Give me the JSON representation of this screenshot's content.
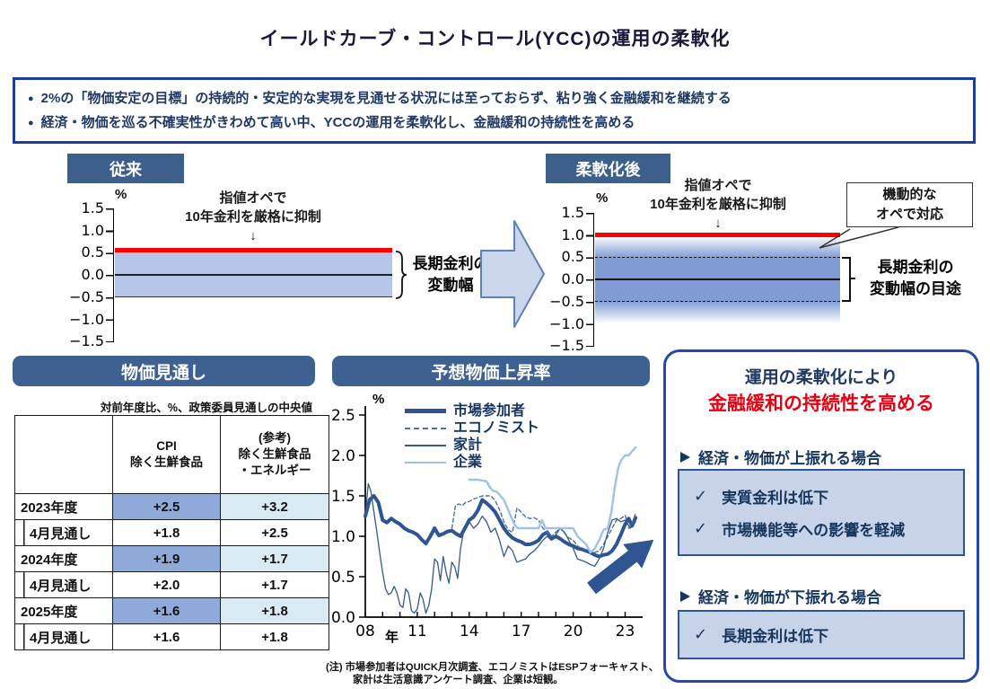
{
  "page_title": "イールドカーブ・コントロール(YCC)の運用の柔軟化",
  "summary": {
    "bullet_mark": "●",
    "bullet1": "2%の「物価安定の目標」の持続的・安定的な実現を見通せる状況には至っておらず、粘り強く金融緩和を継続する",
    "bullet2": "経済・物価を巡る不確実性がきわめて高い中、YCCの運用を柔軟化し、金融緩和の持続性を高める"
  },
  "before_panel": {
    "badge": "従来",
    "unit": "%",
    "yticks": [
      "1.5",
      "1.0",
      "0.5",
      "0.0",
      "−0.5",
      "−1.0",
      "−1.5"
    ],
    "annotation": "指値オペで\n10年金利を厳格に抑制",
    "down_arrow": "↓",
    "red_line_level": 0.5,
    "band_range": [
      -0.5,
      0.5
    ],
    "bracket_label": "長期金利の\n変動幅"
  },
  "after_panel": {
    "badge": "柔軟化後",
    "unit": "%",
    "yticks": [
      "1.5",
      "1.0",
      "0.5",
      "0.0",
      "−0.5",
      "−1.0",
      "−1.5"
    ],
    "annotation": "指値オペで\n10年金利を厳格に抑制",
    "down_arrow": "↓",
    "red_line_level": 1.0,
    "core_band_range": [
      -0.5,
      0.5
    ],
    "fade_band_range": [
      -1.0,
      1.0
    ],
    "callout": "機動的な\nオペで対応",
    "bracket_label": "長期金利の\n変動幅の目途"
  },
  "price_outlook": {
    "header": "物価見通し",
    "note": "対前年度比、%、政策委員見通しの中央値",
    "col_cpi": "CPI\n除く生鮮食品",
    "col_ref": "(参考)\n除く生鮮食品\n・エネルギー",
    "rows": [
      {
        "label": "2023年度",
        "cpi": "+2.5",
        "ref": "+3.2"
      },
      {
        "label": "4月見通し",
        "cpi": "+1.8",
        "ref": "+2.5"
      },
      {
        "label": "2024年度",
        "cpi": "+1.9",
        "ref": "+1.7"
      },
      {
        "label": "4月見通し",
        "cpi": "+2.0",
        "ref": "+1.7"
      },
      {
        "label": "2025年度",
        "cpi": "+1.6",
        "ref": "+1.8"
      },
      {
        "label": "4月見通し",
        "cpi": "+1.6",
        "ref": "+1.8"
      }
    ]
  },
  "expected_inflation": {
    "header": "予想物価上昇率",
    "note_line1": "(注) 市場参加者はQUICK月次調査、エコノミストはESPフォーキャスト、",
    "note_line2": "家計は生活意識アンケート調査、企業は短観。"
  },
  "chart_data": {
    "type": "line",
    "title": "予想物価上昇率",
    "unit": "%",
    "xlabel": "年",
    "ylim": [
      0,
      2.5
    ],
    "yticks": [
      "0.0",
      "0.5",
      "1.0",
      "1.5",
      "2.0",
      "2.5"
    ],
    "xrange": [
      2008,
      2023.7
    ],
    "xtick_years": [
      2008,
      2009,
      2010,
      2011,
      2012,
      2013,
      2014,
      2015,
      2016,
      2017,
      2018,
      2019,
      2020,
      2021,
      2022,
      2023
    ],
    "xtick_labels": [
      {
        "year": 2008,
        "label": "08"
      },
      {
        "year": 2011,
        "label": "11"
      },
      {
        "year": 2014,
        "label": "14"
      },
      {
        "year": 2017,
        "label": "17"
      },
      {
        "year": 2020,
        "label": "20"
      },
      {
        "year": 2023,
        "label": "23"
      }
    ],
    "legend_position": "top-left-inside",
    "series": [
      {
        "name": "市場参加者",
        "color": "#2e5492",
        "width": 4,
        "dash": false,
        "points": [
          [
            2008,
            1.25
          ],
          [
            2008.25,
            1.45
          ],
          [
            2008.5,
            1.5
          ],
          [
            2008.75,
            1.42
          ],
          [
            2009,
            1.2
          ],
          [
            2009.25,
            1.17
          ],
          [
            2009.5,
            1.22
          ],
          [
            2009.75,
            1.18
          ],
          [
            2010,
            1.15
          ],
          [
            2010.25,
            1.1
          ],
          [
            2010.5,
            1.07
          ],
          [
            2010.75,
            1.05
          ],
          [
            2011,
            1.02
          ],
          [
            2011.25,
            0.96
          ],
          [
            2011.5,
            0.91
          ],
          [
            2011.75,
            1.0
          ],
          [
            2012,
            1.1
          ],
          [
            2012.25,
            1.01
          ],
          [
            2012.5,
            1.03
          ],
          [
            2012.75,
            1.06
          ],
          [
            2013,
            1.07
          ],
          [
            2013.25,
            1.03
          ],
          [
            2013.5,
            1.0
          ],
          [
            2013.75,
            1.1
          ],
          [
            2014,
            1.2
          ],
          [
            2014.25,
            1.24
          ],
          [
            2014.5,
            1.32
          ],
          [
            2014.75,
            1.45
          ],
          [
            2015,
            1.41
          ],
          [
            2015.25,
            1.36
          ],
          [
            2015.5,
            1.3
          ],
          [
            2015.75,
            1.2
          ],
          [
            2016,
            1.1
          ],
          [
            2016.25,
            1.03
          ],
          [
            2016.5,
            0.98
          ],
          [
            2016.75,
            0.95
          ],
          [
            2017,
            0.93
          ],
          [
            2017.25,
            0.9
          ],
          [
            2017.5,
            0.9
          ],
          [
            2017.75,
            0.92
          ],
          [
            2018,
            0.95
          ],
          [
            2018.25,
            1.02
          ],
          [
            2018.5,
            1.05
          ],
          [
            2018.75,
            0.97
          ],
          [
            2019,
            1.0
          ],
          [
            2019.25,
            0.97
          ],
          [
            2019.5,
            0.93
          ],
          [
            2019.75,
            0.9
          ],
          [
            2020,
            0.88
          ],
          [
            2020.25,
            0.85
          ],
          [
            2020.5,
            0.84
          ],
          [
            2020.75,
            0.82
          ],
          [
            2021,
            0.8
          ],
          [
            2021.25,
            0.77
          ],
          [
            2021.5,
            0.75
          ],
          [
            2021.75,
            0.77
          ],
          [
            2022,
            0.78
          ],
          [
            2022.25,
            0.82
          ],
          [
            2022.5,
            0.9
          ],
          [
            2022.75,
            1.02
          ],
          [
            2023,
            1.15
          ],
          [
            2023.2,
            1.22
          ],
          [
            2023.4,
            1.13
          ],
          [
            2023.6,
            1.23
          ]
        ]
      },
      {
        "name": "エコノミスト",
        "color": "#4a6fa5",
        "width": 1.4,
        "dash": true,
        "points": [
          [
            2013,
            1.1
          ],
          [
            2013.2,
            1.38
          ],
          [
            2013.4,
            1.4
          ],
          [
            2013.6,
            1.38
          ],
          [
            2013.8,
            1.42
          ],
          [
            2014,
            1.43
          ],
          [
            2014.25,
            1.46
          ],
          [
            2014.5,
            1.48
          ],
          [
            2014.75,
            1.5
          ],
          [
            2015,
            1.5
          ],
          [
            2015.25,
            1.5
          ],
          [
            2015.5,
            1.44
          ],
          [
            2015.75,
            1.33
          ],
          [
            2016,
            1.18
          ],
          [
            2016.25,
            1.08
          ],
          [
            2016.5,
            1.05
          ],
          [
            2016.75,
            1.35
          ],
          [
            2017,
            1.3
          ],
          [
            2017.25,
            1.24
          ],
          [
            2017.5,
            1.22
          ],
          [
            2017.75,
            1.23
          ],
          [
            2018,
            1.2
          ],
          [
            2018.25,
            1.1
          ],
          [
            2018.5,
            1.05
          ],
          [
            2018.75,
            1.0
          ],
          [
            2019,
            1.05
          ],
          [
            2019.25,
            1.1
          ],
          [
            2019.5,
            1.04
          ],
          [
            2019.75,
            0.98
          ],
          [
            2020,
            0.95
          ],
          [
            2020.25,
            0.88
          ],
          [
            2020.5,
            0.85
          ],
          [
            2020.75,
            0.83
          ],
          [
            2021,
            0.82
          ],
          [
            2021.25,
            0.8
          ],
          [
            2021.5,
            0.82
          ],
          [
            2021.75,
            0.9
          ],
          [
            2022,
            1.0
          ],
          [
            2022.25,
            1.1
          ],
          [
            2022.5,
            1.2
          ],
          [
            2022.75,
            1.22
          ],
          [
            2023,
            1.26
          ],
          [
            2023.2,
            1.1
          ],
          [
            2023.4,
            1.16
          ],
          [
            2023.6,
            1.28
          ]
        ]
      },
      {
        "name": "家計",
        "color": "#35598c",
        "width": 1.3,
        "dash": false,
        "points": [
          [
            2008,
            1.25
          ],
          [
            2008.17,
            1.65
          ],
          [
            2008.33,
            1.55
          ],
          [
            2008.5,
            1.3
          ],
          [
            2008.67,
            1.05
          ],
          [
            2008.83,
            0.8
          ],
          [
            2009,
            0.55
          ],
          [
            2009.17,
            0.35
          ],
          [
            2009.33,
            0.28
          ],
          [
            2009.5,
            0.3
          ],
          [
            2009.67,
            0.38
          ],
          [
            2009.83,
            0.3
          ],
          [
            2010,
            0.15
          ],
          [
            2010.17,
            0.12
          ],
          [
            2010.33,
            0.35
          ],
          [
            2010.5,
            0.3
          ],
          [
            2010.67,
            0.08
          ],
          [
            2010.83,
            0.05
          ],
          [
            2011,
            0.1
          ],
          [
            2011.17,
            0.3
          ],
          [
            2011.33,
            0.22
          ],
          [
            2011.5,
            0.05
          ],
          [
            2011.67,
            0.15
          ],
          [
            2011.83,
            0.35
          ],
          [
            2012,
            0.72
          ],
          [
            2012.17,
            0.68
          ],
          [
            2012.33,
            0.45
          ],
          [
            2012.5,
            0.75
          ],
          [
            2012.67,
            0.55
          ],
          [
            2012.83,
            0.42
          ],
          [
            2013,
            0.68
          ],
          [
            2013.17,
            0.62
          ],
          [
            2013.33,
            0.48
          ],
          [
            2013.5,
            0.85
          ],
          [
            2013.67,
            1.05
          ],
          [
            2013.83,
            1.15
          ],
          [
            2014,
            1.18
          ],
          [
            2014.25,
            1.1
          ],
          [
            2014.5,
            1.15
          ],
          [
            2014.75,
            1.25
          ],
          [
            2015,
            1.18
          ],
          [
            2015.25,
            1.05
          ],
          [
            2015.5,
            1.1
          ],
          [
            2015.75,
            0.95
          ],
          [
            2016,
            0.75
          ],
          [
            2016.25,
            0.88
          ],
          [
            2016.5,
            0.82
          ],
          [
            2016.75,
            0.68
          ],
          [
            2017,
            0.7
          ],
          [
            2017.25,
            0.72
          ],
          [
            2017.5,
            0.78
          ],
          [
            2017.75,
            0.82
          ],
          [
            2018,
            0.88
          ],
          [
            2018.25,
            0.95
          ],
          [
            2018.5,
            1.0
          ],
          [
            2018.75,
            0.95
          ],
          [
            2019,
            1.02
          ],
          [
            2019.25,
            1.1
          ],
          [
            2019.5,
            1.05
          ],
          [
            2019.75,
            0.95
          ],
          [
            2020,
            0.85
          ],
          [
            2020.25,
            0.72
          ],
          [
            2020.5,
            0.7
          ],
          [
            2020.75,
            0.68
          ],
          [
            2021,
            0.65
          ],
          [
            2021.25,
            0.63
          ],
          [
            2021.5,
            0.72
          ],
          [
            2021.75,
            0.85
          ],
          [
            2022,
            1.05
          ],
          [
            2022.25,
            1.2
          ],
          [
            2022.5,
            1.22
          ],
          [
            2022.75,
            1.18
          ],
          [
            2023,
            1.2
          ],
          [
            2023.3,
            1.1
          ],
          [
            2023.6,
            1.18
          ]
        ]
      },
      {
        "name": "企業",
        "color": "#9dc3e6",
        "width": 2.4,
        "dash": false,
        "points": [
          [
            2014,
            1.7
          ],
          [
            2014.25,
            1.7
          ],
          [
            2014.5,
            1.7
          ],
          [
            2014.75,
            1.69
          ],
          [
            2015,
            1.68
          ],
          [
            2015.2,
            1.6
          ],
          [
            2015.4,
            1.56
          ],
          [
            2015.6,
            1.55
          ],
          [
            2015.8,
            1.5
          ],
          [
            2016,
            1.45
          ],
          [
            2016.2,
            1.35
          ],
          [
            2016.4,
            1.25
          ],
          [
            2016.6,
            1.15
          ],
          [
            2016.8,
            1.1
          ],
          [
            2017,
            1.1
          ],
          [
            2017.5,
            1.1
          ],
          [
            2018,
            1.1
          ],
          [
            2018.2,
            1.2
          ],
          [
            2018.4,
            1.1
          ],
          [
            2019,
            1.1
          ],
          [
            2019.5,
            1.1
          ],
          [
            2020,
            1.1
          ],
          [
            2020.25,
            1.0
          ],
          [
            2020.5,
            0.95
          ],
          [
            2020.75,
            0.9
          ],
          [
            2021,
            0.8
          ],
          [
            2021.25,
            0.85
          ],
          [
            2021.5,
            0.95
          ],
          [
            2021.75,
            1.08
          ],
          [
            2022,
            1.1
          ],
          [
            2022.2,
            1.3
          ],
          [
            2022.4,
            1.6
          ],
          [
            2022.6,
            1.85
          ],
          [
            2022.8,
            1.95
          ],
          [
            2023,
            2.0
          ],
          [
            2023.2,
            2.0
          ],
          [
            2023.4,
            2.05
          ],
          [
            2023.6,
            2.1
          ]
        ]
      }
    ]
  },
  "policy_panel": {
    "title_line1": "運用の柔軟化により",
    "title_line2": "金融緩和の持続性を高める",
    "bullet_mark": "➢",
    "check_mark": "✓",
    "case1": "経済・物価が上振れる場合",
    "case1_items": [
      "実質金利は低下",
      "市場機能等への影響を軽減"
    ],
    "case2": "経済・物価が下振れる場合",
    "case2_items": [
      "長期金利は低下"
    ]
  },
  "colors": {
    "navy_text": "#1f3864",
    "slate_header": "#3e6192",
    "badge": "#3c5f8c",
    "light_band": "#b6c6e8",
    "medium_band": "#7f9cd4",
    "red_line": "#ff0000",
    "red_text": "#e60012",
    "summary_border": "#1d3c9e",
    "panel_border": "#2648a8",
    "check_box_bg": "#c6d3e8",
    "check_box_border": "#2f5496",
    "table_highlight_blue": "#8fa9d9",
    "table_highlight_pale": "#daeaf3",
    "arrow_fill": "#c9d6ec"
  }
}
